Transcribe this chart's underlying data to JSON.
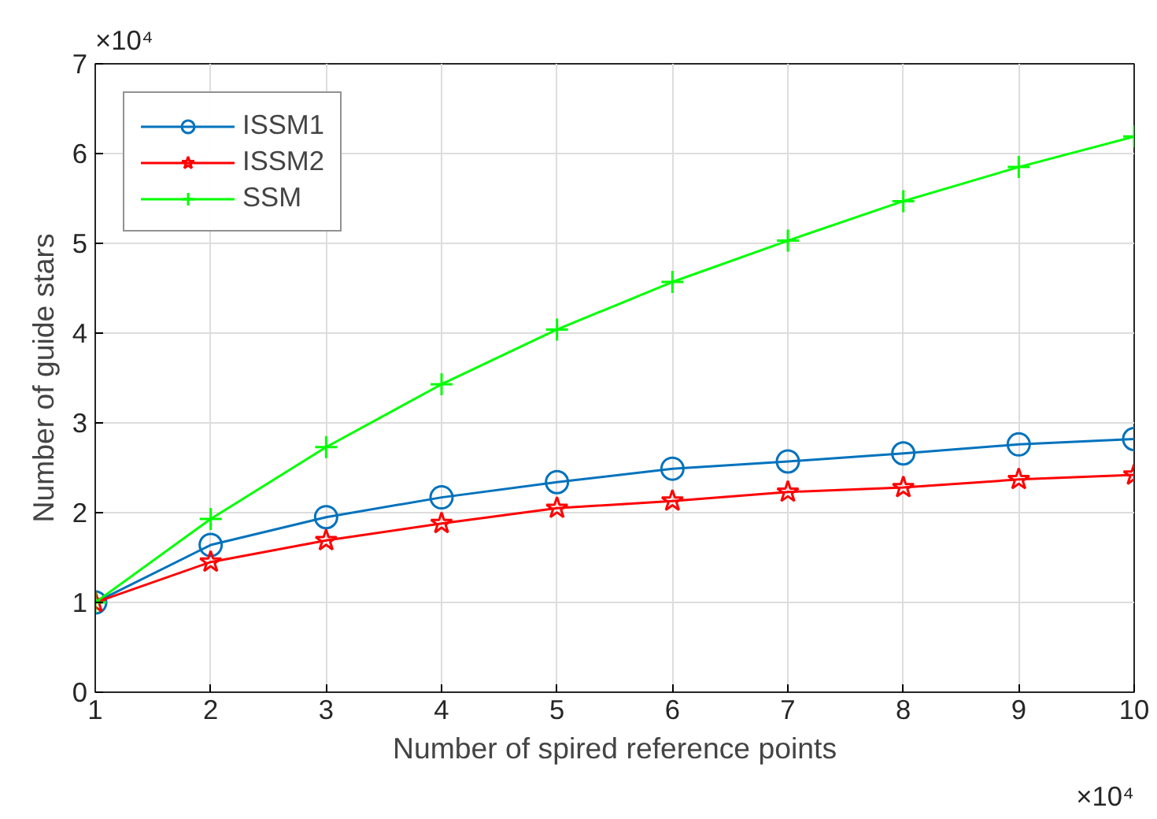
{
  "chart_data": {
    "type": "line",
    "xlabel": "Number of spired reference points",
    "ylabel": "Number of guide stars",
    "x": [
      1,
      2,
      3,
      4,
      5,
      6,
      7,
      8,
      9,
      10
    ],
    "series": [
      {
        "name": "ISSM1",
        "color": "#0072bd",
        "marker": "circle",
        "values": [
          1.0,
          1.64,
          1.95,
          2.17,
          2.34,
          2.49,
          2.57,
          2.66,
          2.76,
          2.82
        ]
      },
      {
        "name": "ISSM2",
        "color": "#ff0000",
        "marker": "star",
        "values": [
          1.0,
          1.45,
          1.69,
          1.88,
          2.05,
          2.13,
          2.23,
          2.28,
          2.37,
          2.42
        ]
      },
      {
        "name": "SSM",
        "color": "#00ff00",
        "marker": "cross",
        "values": [
          1.0,
          1.93,
          2.73,
          3.43,
          4.04,
          4.57,
          5.03,
          5.47,
          5.85,
          6.19
        ]
      }
    ],
    "xlim": [
      1,
      10
    ],
    "ylim": [
      0,
      7
    ],
    "xticks": [
      1,
      2,
      3,
      4,
      5,
      6,
      7,
      8,
      9,
      10
    ],
    "yticks": [
      0,
      1,
      2,
      3,
      4,
      5,
      6,
      7
    ],
    "annotations": [
      "×10⁴",
      "×10⁴"
    ],
    "grid": true,
    "legend": "top left",
    "line_style": "solid"
  }
}
